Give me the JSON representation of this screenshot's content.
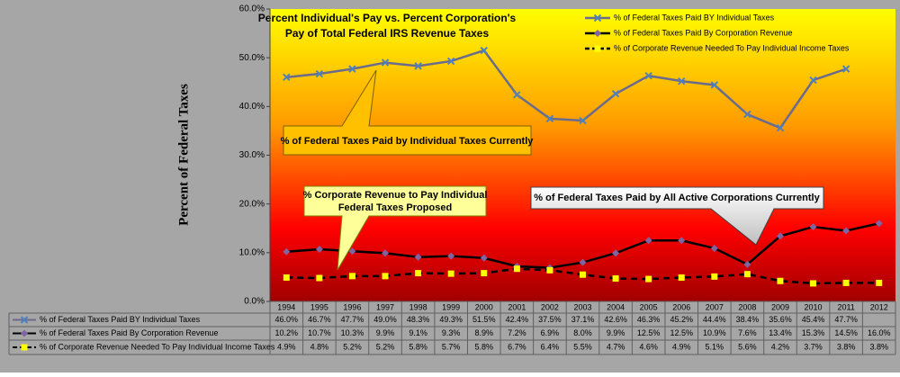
{
  "chart_data": {
    "type": "line",
    "title": [
      "Percent Individual's Pay vs. Percent Corporation's",
      "Pay of  Total Federal IRS Revenue Taxes"
    ],
    "y_label": "Percent of Federal Taxes",
    "categories": [
      "1994",
      "1995",
      "1996",
      "1997",
      "1998",
      "1999",
      "2000",
      "2001",
      "2002",
      "2003",
      "2004",
      "2005",
      "2006",
      "2007",
      "2008",
      "2009",
      "2010",
      "2011",
      "2012"
    ],
    "ylim": [
      0,
      60
    ],
    "yticks": [
      {
        "value": 0,
        "label": "0.0%"
      },
      {
        "value": 10,
        "label": "10.0%"
      },
      {
        "value": 20,
        "label": "20.0%"
      },
      {
        "value": 30,
        "label": "30.0%"
      },
      {
        "value": 40,
        "label": "40.0%"
      },
      {
        "value": 50,
        "label": "50.0%"
      },
      {
        "value": 60,
        "label": "60.0%"
      }
    ],
    "series": [
      {
        "name": "% of Federal Taxes Paid BY  Individual Taxes",
        "color": "#6b6b8c",
        "marker": "x",
        "marker_color": "#4f81bd",
        "dashed": false,
        "values": [
          46.0,
          46.7,
          47.7,
          49.0,
          48.3,
          49.3,
          51.5,
          42.4,
          37.5,
          37.1,
          42.6,
          46.3,
          45.2,
          44.4,
          38.4,
          35.6,
          45.4,
          47.7,
          null
        ],
        "value_labels": [
          "46.0%",
          "46.7%",
          "47.7%",
          "49.0%",
          "48.3%",
          "49.3%",
          "51.5%",
          "42.4%",
          "37.5%",
          "37.1%",
          "42.6%",
          "46.3%",
          "45.2%",
          "44.4%",
          "38.4%",
          "35.6%",
          "45.4%",
          "47.7%",
          null
        ]
      },
      {
        "name": "% of  Federal Taxes Paid By  Corporation Revenue",
        "color": "#000000",
        "marker": "diamond",
        "marker_color": "#8064a2",
        "dashed": false,
        "values": [
          10.2,
          10.7,
          10.3,
          9.9,
          9.1,
          9.3,
          8.9,
          7.2,
          6.9,
          8.0,
          9.9,
          12.5,
          12.5,
          10.9,
          7.6,
          13.4,
          15.3,
          14.5,
          16.0
        ],
        "value_labels": [
          "10.2%",
          "10.7%",
          "10.3%",
          "9.9%",
          "9.1%",
          "9.3%",
          "8.9%",
          "7.2%",
          "6.9%",
          "8.0%",
          "9.9%",
          "12.5%",
          "12.5%",
          "10.9%",
          "7.6%",
          "13.4%",
          "15.3%",
          "14.5%",
          "16.0%"
        ]
      },
      {
        "name": "% of Corporate Revenue Needed To Pay  Individual Income Taxes",
        "color": "#000000",
        "marker": "square",
        "marker_color": "#ffff00",
        "dashed": true,
        "values": [
          4.9,
          4.8,
          5.2,
          5.2,
          5.8,
          5.7,
          5.8,
          6.7,
          6.4,
          5.5,
          4.7,
          4.6,
          4.9,
          5.1,
          5.6,
          4.2,
          3.7,
          3.8,
          3.8
        ],
        "value_labels": [
          "4.9%",
          "4.8%",
          "5.2%",
          "5.2%",
          "5.8%",
          "5.7%",
          "5.8%",
          "6.7%",
          "6.4%",
          "5.5%",
          "4.7%",
          "4.6%",
          "4.9%",
          "5.1%",
          "5.6%",
          "4.2%",
          "3.7%",
          "3.8%",
          "3.8%"
        ]
      }
    ],
    "annotations": [
      "% of Federal Taxes Paid by Individual Taxes Currently",
      "% Corporate Revenue to Pay Individual",
      "Federal Taxes Proposed",
      "% of Federal Taxes Paid by All Active Corporations Currently"
    ]
  }
}
